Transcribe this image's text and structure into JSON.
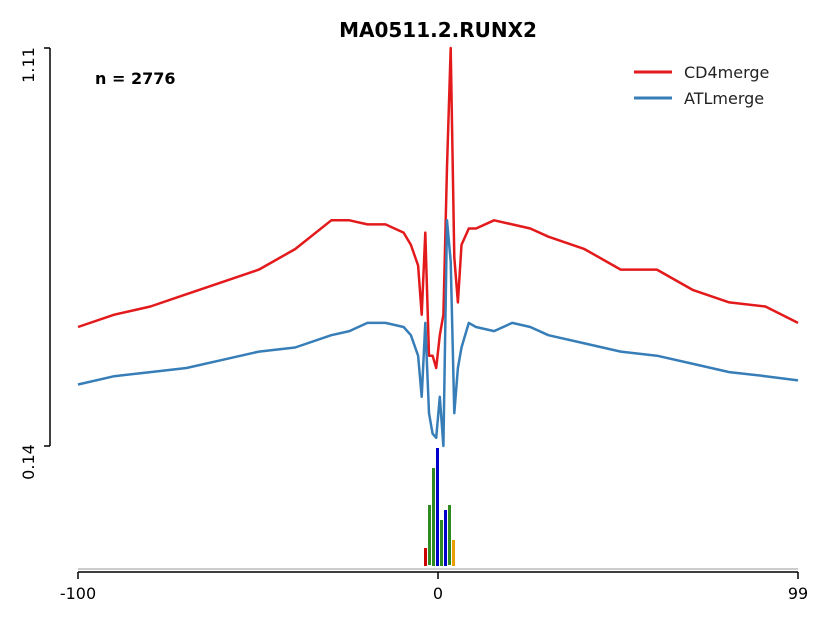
{
  "chart_data": {
    "type": "line",
    "title": "MA0511.2.RUNX2",
    "annotation": "n = 2776",
    "xlim": [
      -100,
      99
    ],
    "ylim": [
      0.14,
      1.11
    ],
    "x_ticks": [
      "-100",
      "0",
      "99"
    ],
    "y_ticks": [
      "0.14",
      "1.11"
    ],
    "legend_position": "top-right",
    "grid": false,
    "series": [
      {
        "name": "CD4merge",
        "color": "#e31a1c",
        "x": [
          -100,
          -90,
          -80,
          -70,
          -60,
          -50,
          -40,
          -30,
          -25,
          -20,
          -15,
          -10,
          -8,
          -6,
          -5,
          -4,
          -3,
          -2,
          -1,
          0,
          1,
          2,
          3,
          4,
          5,
          6,
          8,
          10,
          15,
          20,
          25,
          30,
          40,
          50,
          60,
          70,
          80,
          90,
          99
        ],
        "y": [
          0.43,
          0.46,
          0.48,
          0.51,
          0.54,
          0.57,
          0.62,
          0.69,
          0.69,
          0.68,
          0.68,
          0.66,
          0.63,
          0.58,
          0.46,
          0.66,
          0.36,
          0.36,
          0.33,
          0.41,
          0.46,
          0.82,
          1.11,
          0.6,
          0.49,
          0.63,
          0.67,
          0.67,
          0.69,
          0.68,
          0.67,
          0.65,
          0.62,
          0.57,
          0.57,
          0.52,
          0.49,
          0.48,
          0.44
        ]
      },
      {
        "name": "ATLmerge",
        "color": "#377eb8",
        "x": [
          -100,
          -90,
          -80,
          -70,
          -60,
          -50,
          -40,
          -30,
          -25,
          -20,
          -15,
          -10,
          -8,
          -6,
          -5,
          -4,
          -3,
          -2,
          -1,
          0,
          1,
          2,
          3,
          4,
          5,
          6,
          8,
          10,
          15,
          20,
          25,
          30,
          40,
          50,
          60,
          70,
          80,
          90,
          99
        ],
        "y": [
          0.29,
          0.31,
          0.32,
          0.33,
          0.35,
          0.37,
          0.38,
          0.41,
          0.42,
          0.44,
          0.44,
          0.43,
          0.41,
          0.36,
          0.26,
          0.44,
          0.22,
          0.17,
          0.16,
          0.26,
          0.14,
          0.69,
          0.59,
          0.22,
          0.33,
          0.38,
          0.44,
          0.43,
          0.42,
          0.44,
          0.43,
          0.41,
          0.39,
          0.37,
          0.36,
          0.34,
          0.32,
          0.31,
          0.3
        ]
      }
    ]
  }
}
